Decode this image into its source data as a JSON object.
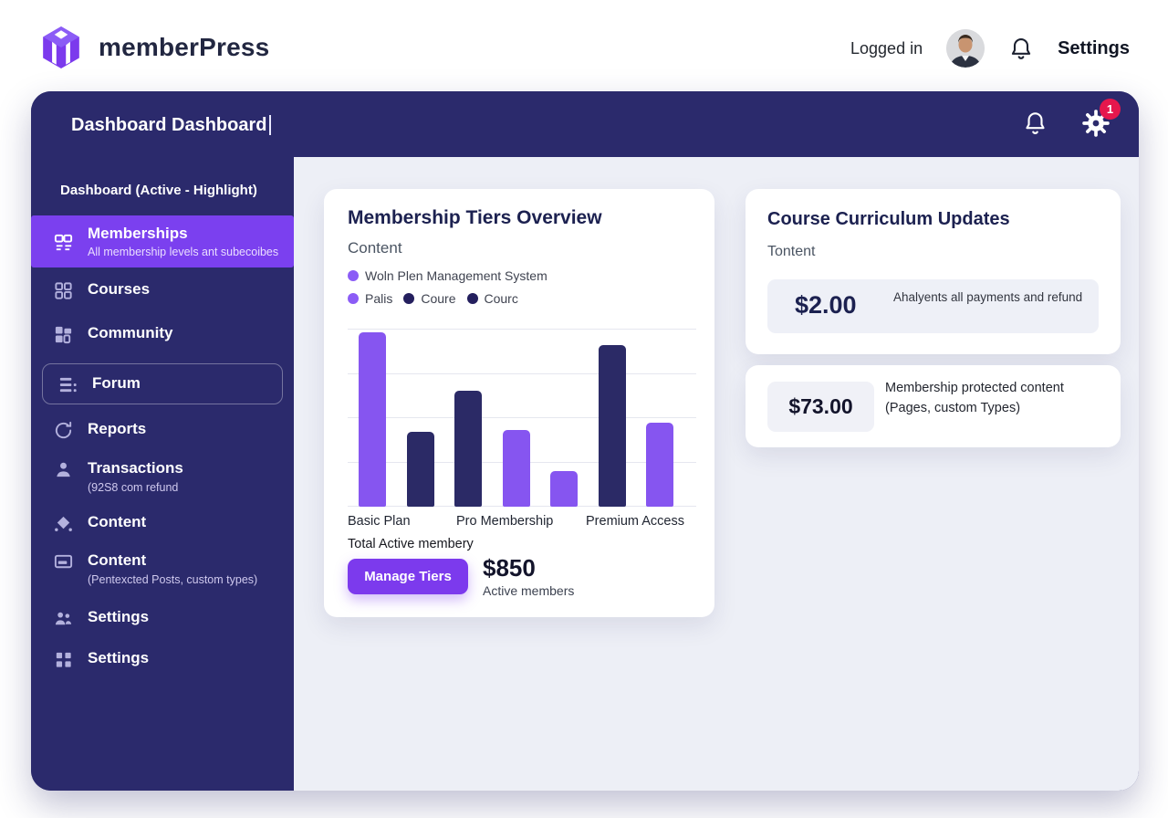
{
  "colors": {
    "frame_navy": "#2b2a6c",
    "active_purple": "#7b40ef",
    "button_purple": "#7c3aed",
    "bar_purple": "#8655f0",
    "bar_navy": "#2b2a66",
    "badge_red": "#e5174d",
    "content_bg": "#edeff6"
  },
  "header": {
    "brand": "memberPress",
    "logged_in": "Logged in",
    "settings": "Settings"
  },
  "topbar": {
    "title": "Dashboard Dashboard",
    "badge_count": "1"
  },
  "sidebar": {
    "section_label": "Dashboard (Active - Highlight)",
    "items": [
      {
        "id": "memberships",
        "label": "Memberships",
        "sub": "All membership levels ant subecoibes",
        "icon": "card",
        "active": true
      },
      {
        "id": "courses",
        "label": "Courses",
        "icon": "grid"
      },
      {
        "id": "community",
        "label": "Community",
        "icon": "blocks"
      },
      {
        "id": "forum",
        "label": "Forum",
        "icon": "list",
        "boxed": true
      },
      {
        "id": "reports",
        "label": "Reports",
        "icon": "sync"
      },
      {
        "id": "transactions",
        "label": "Transactions",
        "sub": "(92S8 com refund",
        "icon": "person"
      },
      {
        "id": "content",
        "label": "Content",
        "icon": "diamond"
      },
      {
        "id": "content-2",
        "label": "Content",
        "sub": "(Pentexcted Posts, custom types)",
        "icon": "card2"
      },
      {
        "id": "settings",
        "label": "Settings",
        "icon": "people"
      },
      {
        "id": "settings-2",
        "label": "Settings",
        "icon": "squares"
      }
    ]
  },
  "overview_card": {
    "title": "Membership Tiers Overview",
    "subtitle": "Content",
    "legend_line1": [
      {
        "color": "#8b5cf6",
        "label": "Woln Plen Management System"
      }
    ],
    "legend_line2": [
      {
        "color": "#8b5cf6",
        "label": "Palis"
      },
      {
        "color": "#241f5e",
        "label": "Coure"
      },
      {
        "color": "#241f5e",
        "label": "Courc"
      }
    ],
    "total_label": "Total Active membery",
    "button_label": "Manage Tiers",
    "stat_value": "$850",
    "stat_label": "Active members"
  },
  "chart_data": {
    "type": "bar",
    "title": "Membership Tiers Overview",
    "categories": [
      "Basic Plan",
      "Pro Membership",
      "Premium Access"
    ],
    "bars": [
      {
        "group": "Basic Plan",
        "value_pct": 98,
        "color_key": "purple"
      },
      {
        "group": "Basic Plan",
        "value_pct": 42,
        "color_key": "navy"
      },
      {
        "group": "Pro Membership",
        "value_pct": 65,
        "color_key": "navy"
      },
      {
        "group": "Pro Membership",
        "value_pct": 43,
        "color_key": "purple"
      },
      {
        "group": "Pro Membership",
        "value_pct": 20,
        "color_key": "purple"
      },
      {
        "group": "Premium Access",
        "value_pct": 91,
        "color_key": "navy"
      },
      {
        "group": "Premium Access",
        "value_pct": 47,
        "color_key": "purple"
      }
    ],
    "bar_colors": {
      "purple": "#8655f0",
      "navy": "#2b2a66"
    },
    "gridlines": 5,
    "ylim_pct": [
      0,
      100
    ],
    "legend_position": "top-left",
    "grid": true
  },
  "updates_card": {
    "title": "Course Curriculum Updates",
    "subtitle": "Tontent",
    "amount": "$2.00",
    "desc": "Ahalyents all payments and refund"
  },
  "protected_card": {
    "amount": "$73.00",
    "desc_line1": "Membership protected content",
    "desc_line2": "(Pages, custom Types)"
  }
}
